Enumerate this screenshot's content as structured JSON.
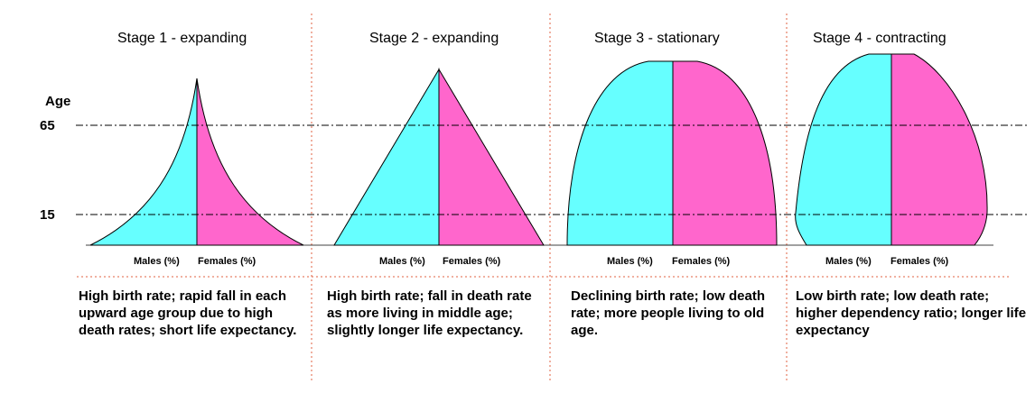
{
  "axis": {
    "label": "Age",
    "ticks": [
      "65",
      "15"
    ]
  },
  "colors": {
    "males": "#66ffff",
    "females": "#ff66cc",
    "guide": "#000000",
    "divider": "#e06040"
  },
  "stages": [
    {
      "title": "Stage 1 - expanding",
      "males_label": "Males (%)",
      "females_label": "Females (%)",
      "description": "High birth rate; rapid fall in each upward age group due to high death rates; short life expectancy."
    },
    {
      "title": "Stage 2 - expanding",
      "males_label": "Males (%)",
      "females_label": "Females (%)",
      "description": "High birth rate; fall in death rate as more living in middle age; slightly longer life expectancy."
    },
    {
      "title": "Stage 3 - stationary",
      "males_label": "Males (%)",
      "females_label": "Females (%)",
      "description": "Declining birth rate; low death rate; more people living to old age."
    },
    {
      "title": "Stage 4 - contracting",
      "males_label": "Males (%)",
      "females_label": "Females (%)",
      "description": "Low birth rate; low death rate; higher dependency ratio; longer life expectancy"
    }
  ]
}
